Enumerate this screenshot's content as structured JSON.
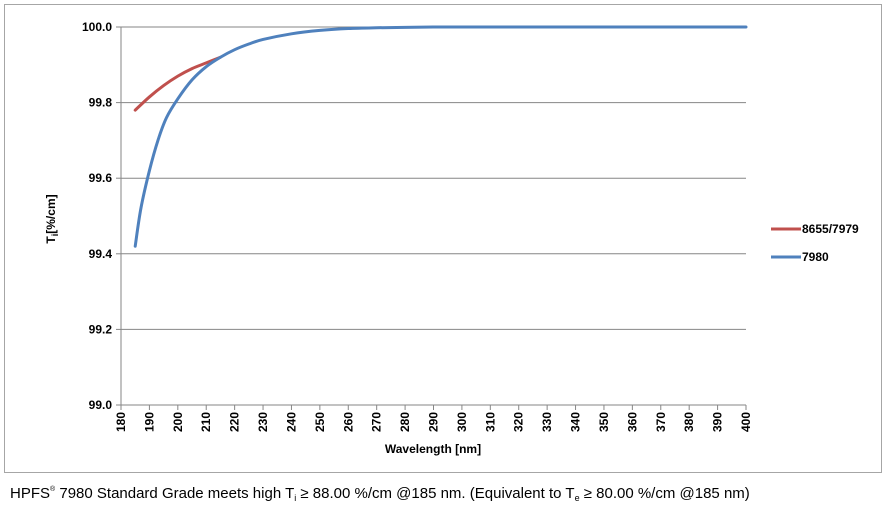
{
  "chart_data": {
    "type": "line",
    "title": "",
    "xlabel": "Wavelength [nm]",
    "ylabel": "Ti[%/cm]",
    "ylabel_main": "T",
    "ylabel_sub": "i",
    "ylabel_rest": "[%/cm]",
    "xlim": [
      180,
      400
    ],
    "ylim": [
      99.0,
      100.0
    ],
    "xticks": [
      "180",
      "190",
      "200",
      "210",
      "220",
      "230",
      "240",
      "250",
      "260",
      "270",
      "280",
      "290",
      "300",
      "310",
      "320",
      "330",
      "340",
      "350",
      "360",
      "370",
      "380",
      "390",
      "400"
    ],
    "yticks": [
      "99.0",
      "99.2",
      "99.4",
      "99.6",
      "99.8",
      "100.0"
    ],
    "grid": "horizontal",
    "legend_position": "right",
    "series": [
      {
        "name": "8655/7979",
        "color": "#c0504d",
        "x": [
          185,
          190,
          195,
          200,
          205,
          210,
          215
        ],
        "y": [
          99.78,
          99.815,
          99.845,
          99.87,
          99.89,
          99.905,
          99.92
        ]
      },
      {
        "name": "7980",
        "color": "#4f81bd",
        "x": [
          185,
          187,
          190,
          193,
          196,
          200,
          205,
          210,
          215,
          220,
          225,
          230,
          240,
          250,
          260,
          270,
          280,
          290,
          300,
          320,
          350,
          400
        ],
        "y": [
          99.42,
          99.52,
          99.62,
          99.7,
          99.76,
          99.81,
          99.86,
          99.895,
          99.92,
          99.94,
          99.955,
          99.967,
          99.982,
          99.991,
          99.996,
          99.998,
          99.999,
          100.0,
          100.0,
          100.0,
          100.0,
          100.0
        ]
      }
    ]
  },
  "caption": {
    "part1": "HPFS",
    "sup": "®",
    "part2": " 7980 Standard Grade meets high T",
    "sub1": "i",
    "part3": " ≥ 88.00 %/cm @185 nm. (Equivalent to T",
    "sub2": "e",
    "part4": " ≥ 80.00 %/cm @185 nm)"
  }
}
